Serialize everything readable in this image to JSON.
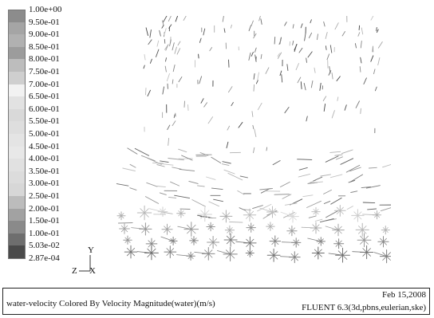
{
  "legend": {
    "labels": [
      "1.00e+00",
      "9.50e-01",
      "9.00e-01",
      "8.50e-01",
      "8.00e-01",
      "7.50e-01",
      "7.00e-01",
      "6.50e-01",
      "6.00e-01",
      "5.50e-01",
      "5.00e-01",
      "4.50e-01",
      "4.00e-01",
      "3.50e-01",
      "3.00e-01",
      "2.50e-01",
      "2.00e-01",
      "1.50e-01",
      "1.00e-01",
      "5.03e-02",
      "2.87e-04"
    ],
    "colors": [
      "#8c8c8c",
      "#a5a5a5",
      "#b1b1b1",
      "#9c9c9c",
      "#bdbdbd",
      "#cfcfcf",
      "#f2f2f2",
      "#e2e2e2",
      "#d9d9d9",
      "#dedede",
      "#e4e4e4",
      "#e8e8e8",
      "#e1e1e1",
      "#dcdcdc",
      "#d7d7d7",
      "#bcbcbc",
      "#a2a2a2",
      "#8a8a8a",
      "#6e6e6e",
      "#4a4a4a"
    ]
  },
  "axes_icon": {
    "y": "Y",
    "z": "Z",
    "x": "X"
  },
  "caption": {
    "title": "water-velocity Colored By Velocity Magnitude(water)(m/s)",
    "date": "Feb 15,2008",
    "solver": "FLUENT 6.3(3d,pbns,eulerian,ske)"
  }
}
